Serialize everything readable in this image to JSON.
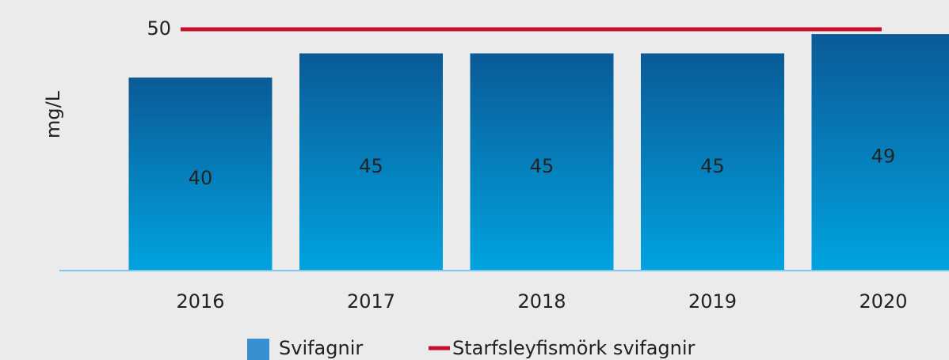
{
  "chart_data": {
    "type": "bar",
    "y_label": "mg/L",
    "categories": [
      "2016",
      "2017",
      "2018",
      "2019",
      "2020"
    ],
    "series": [
      {
        "name": "Svifagnir",
        "color": "#0a5a96",
        "color_bottom": "#00a3e0",
        "legend_color": "#3a8fd0",
        "values": [
          40,
          45,
          45,
          45,
          49
        ]
      }
    ],
    "limit": {
      "name": "Starfsleyfismörk svifagnir",
      "value": 50,
      "color": "#c8102e"
    },
    "ylim": [
      0,
      50
    ]
  }
}
